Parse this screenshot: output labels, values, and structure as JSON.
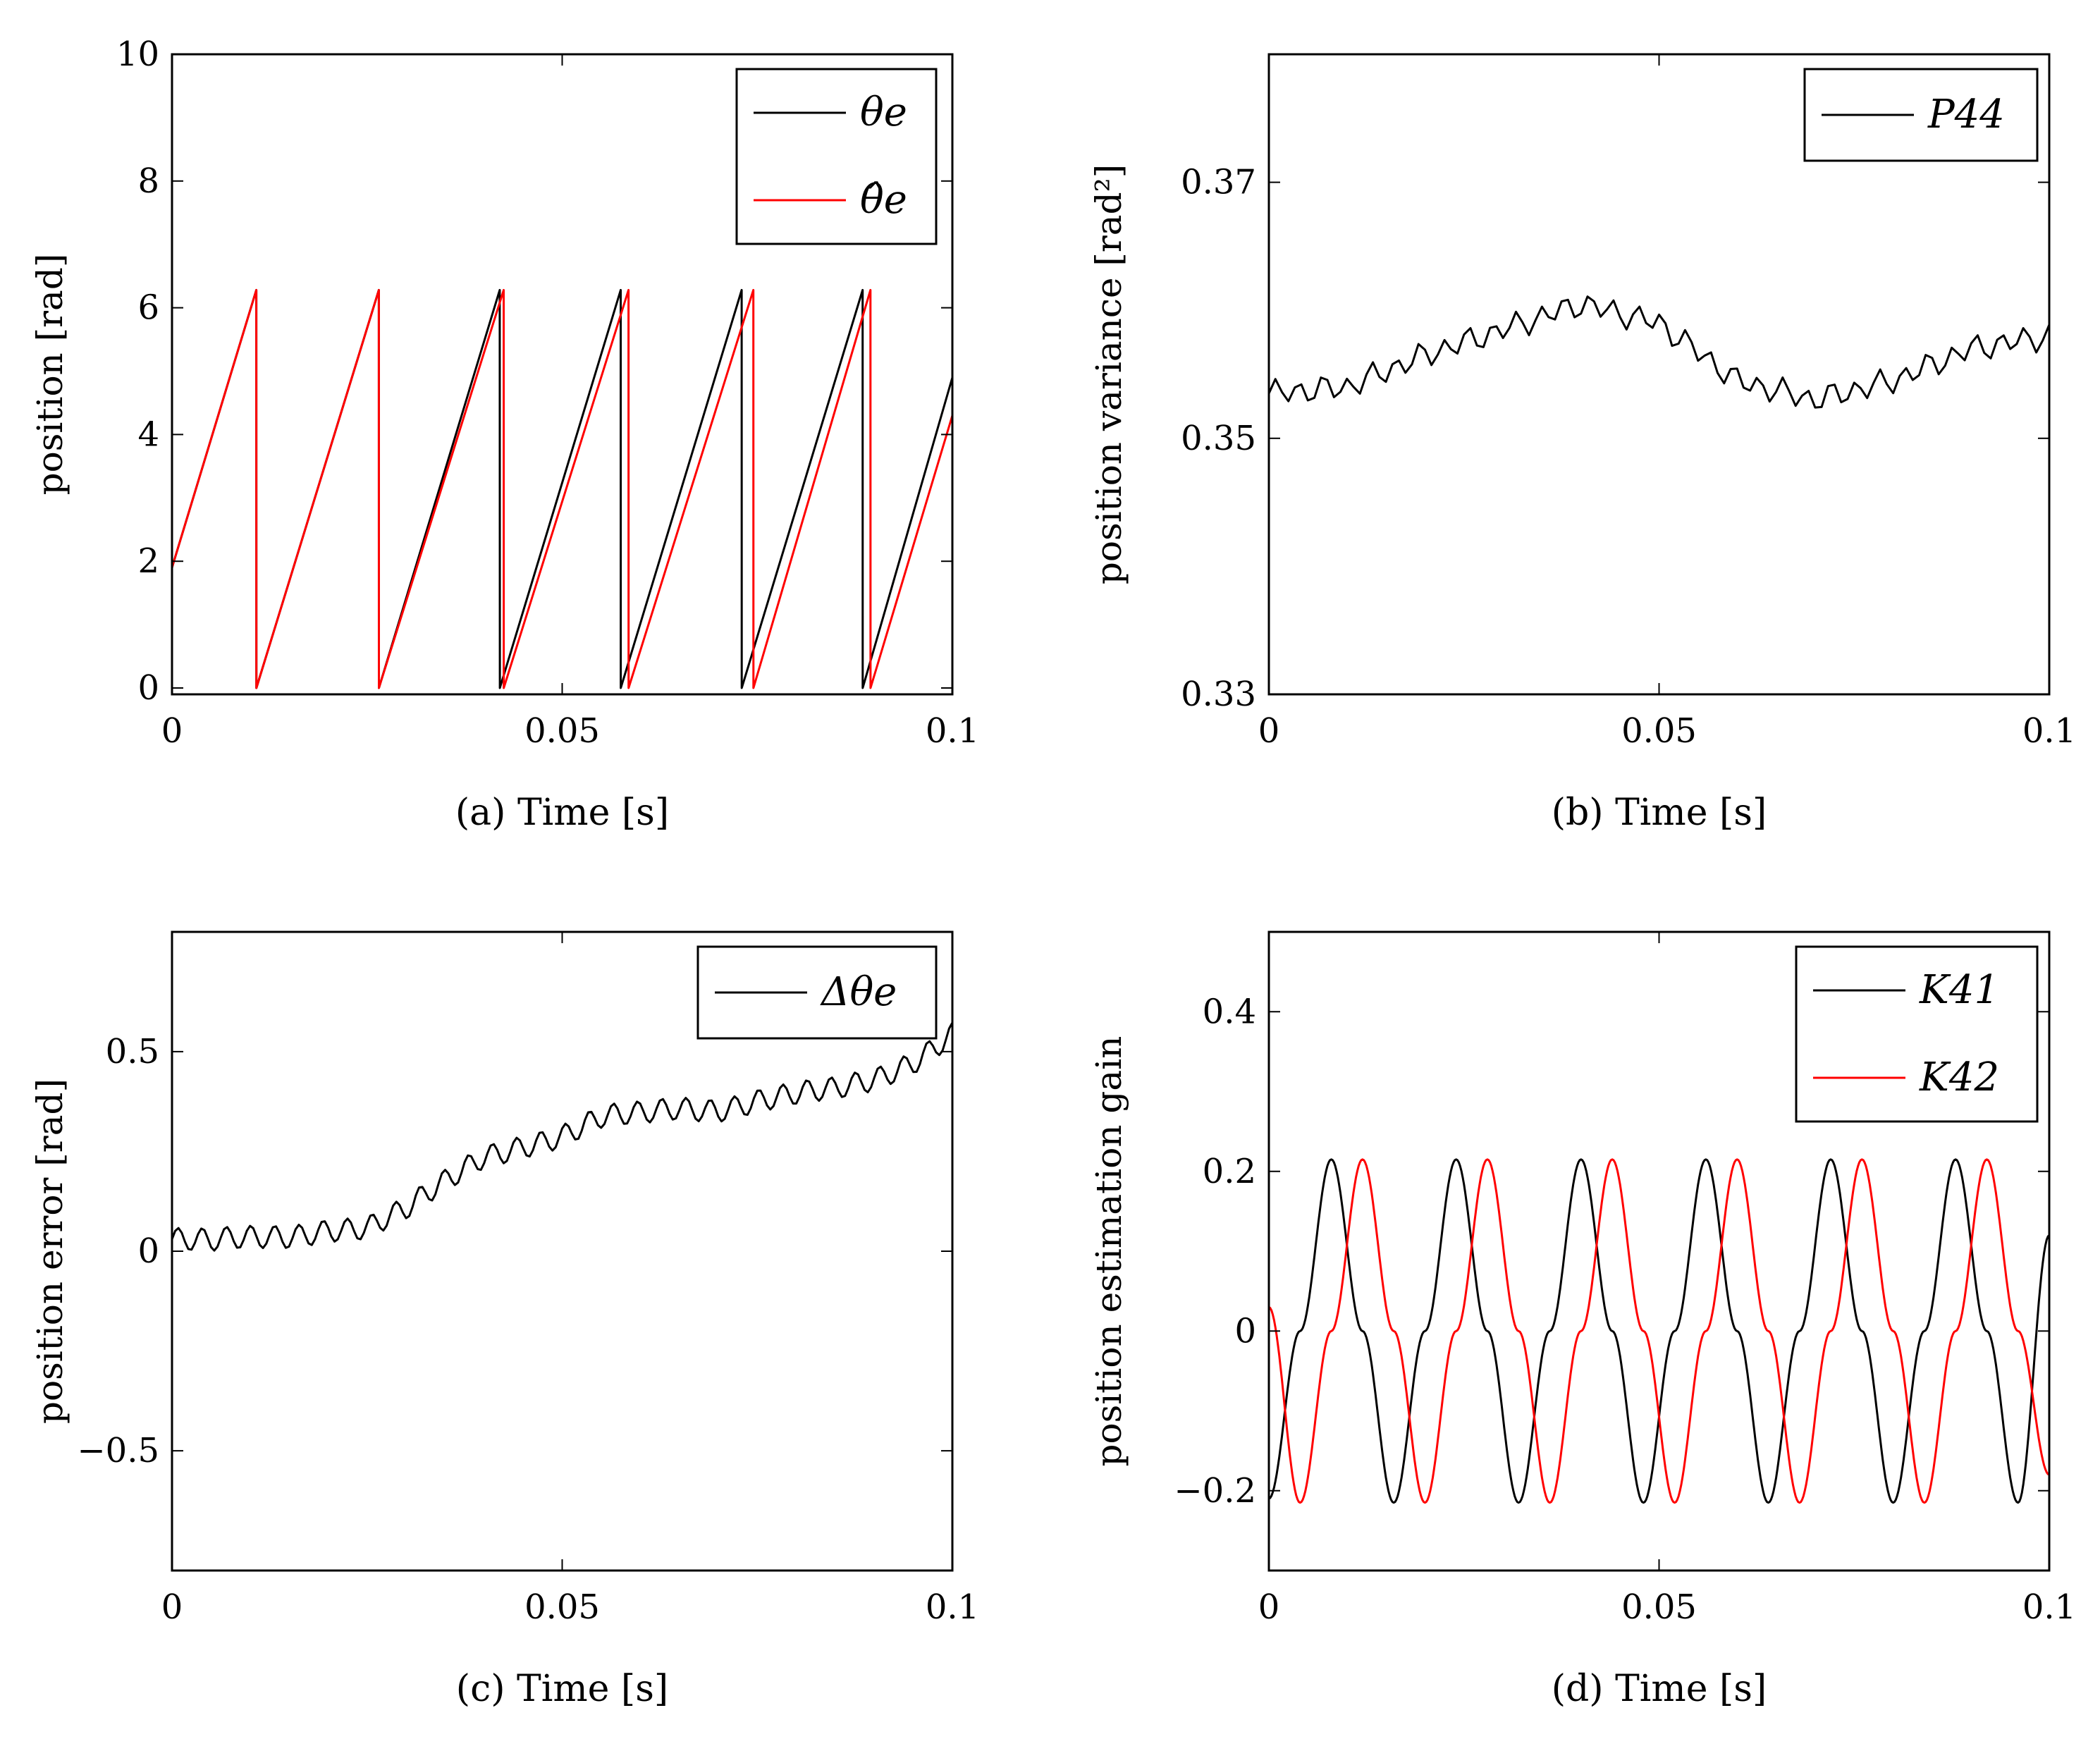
{
  "chart_data": [
    {
      "id": "a",
      "type": "line",
      "caption": "(a) Time [s]",
      "ylabel": "position [rad]",
      "xlim": [
        0,
        0.1
      ],
      "ylim": [
        -0.1,
        10
      ],
      "xticks": [
        0,
        0.05,
        0.1
      ],
      "xtick_labels": [
        "0",
        "0.05",
        "0.1"
      ],
      "yticks": [
        0,
        2,
        4,
        6,
        8,
        10
      ],
      "ytick_labels": [
        "0",
        "2",
        "4",
        "6",
        "8",
        "10"
      ],
      "legend_position": "top-right",
      "series": [
        {
          "name": "θe",
          "color": "#000000",
          "x": [
            0,
            0.0108,
            0.01081,
            0.0265,
            0.02651,
            0.042,
            0.04201,
            0.0575,
            0.05751,
            0.073,
            0.07301,
            0.0885,
            0.08851,
            0.1
          ],
          "values": [
            1.9,
            6.28,
            0,
            6.28,
            0,
            6.28,
            0,
            6.28,
            0,
            6.28,
            0,
            6.28,
            0,
            4.9
          ]
        },
        {
          "name": "θ̂e",
          "color": "#ff0000",
          "x": [
            0,
            0.0108,
            0.01081,
            0.0265,
            0.02651,
            0.0425,
            0.04251,
            0.0585,
            0.05851,
            0.0745,
            0.07451,
            0.0895,
            0.08951,
            0.1
          ],
          "values": [
            1.9,
            6.28,
            0,
            6.28,
            0,
            6.28,
            0,
            6.28,
            0,
            6.28,
            0,
            6.28,
            0,
            4.3
          ]
        }
      ]
    },
    {
      "id": "b",
      "type": "line",
      "caption": "(b) Time [s]",
      "ylabel": "position variance [rad²]",
      "xlim": [
        0,
        0.1
      ],
      "ylim": [
        0.33,
        0.38
      ],
      "xticks": [
        0,
        0.05,
        0.1
      ],
      "xtick_labels": [
        "0",
        "0.05",
        "0.1"
      ],
      "yticks": [
        0.33,
        0.35,
        0.37
      ],
      "ytick_labels": [
        "0.33",
        "0.35",
        "0.37"
      ],
      "legend_position": "top-right",
      "series": [
        {
          "name": "P44",
          "color": "#000000",
          "x": [
            0,
            0.01,
            0.02,
            0.03,
            0.04,
            0.05,
            0.06,
            0.07,
            0.08,
            0.09,
            0.1
          ],
          "values": [
            0.3535,
            0.354,
            0.3565,
            0.3585,
            0.3605,
            0.359,
            0.3545,
            0.353,
            0.3545,
            0.357,
            0.358
          ]
        }
      ]
    },
    {
      "id": "c",
      "type": "line",
      "caption": "(c) Time [s]",
      "ylabel": "position error [rad]",
      "xlim": [
        0,
        0.1
      ],
      "ylim": [
        -0.8,
        0.8
      ],
      "xticks": [
        0,
        0.05,
        0.1
      ],
      "xtick_labels": [
        "0",
        "0.05",
        "0.1"
      ],
      "yticks": [
        -0.5,
        0,
        0.5
      ],
      "ytick_labels": [
        "−0.5",
        "0",
        "0.5"
      ],
      "legend_position": "top-right",
      "series": [
        {
          "name": "Δθe",
          "color": "#000000",
          "x": [
            0,
            0.005,
            0.01,
            0.015,
            0.02,
            0.025,
            0.03,
            0.035,
            0.04,
            0.045,
            0.05,
            0.055,
            0.06,
            0.065,
            0.07,
            0.075,
            0.08,
            0.085,
            0.09,
            0.095,
            0.1
          ],
          "values": [
            0.03,
            0.02,
            0.03,
            0.04,
            0.06,
            0.06,
            0.1,
            0.17,
            0.24,
            0.27,
            0.29,
            0.33,
            0.34,
            0.36,
            0.36,
            0.38,
            0.39,
            0.4,
            0.43,
            0.48,
            0.55
          ]
        }
      ]
    },
    {
      "id": "d",
      "type": "line",
      "caption": "(d) Time [s]",
      "ylabel": "position estimation gain",
      "xlim": [
        0,
        0.1
      ],
      "ylim": [
        -0.3,
        0.5
      ],
      "xticks": [
        0,
        0.05,
        0.1
      ],
      "xtick_labels": [
        "0",
        "0.05",
        "0.1"
      ],
      "yticks": [
        -0.2,
        0,
        0.2,
        0.4
      ],
      "ytick_labels": [
        "−0.2",
        "0",
        "0.2",
        "0.4"
      ],
      "legend_position": "top-right",
      "series": [
        {
          "name": "K41",
          "color": "#000000",
          "x": [
            0,
            0.004,
            0.008,
            0.012,
            0.016,
            0.02,
            0.024,
            0.028,
            0.032,
            0.036,
            0.04,
            0.044,
            0.048,
            0.052,
            0.056,
            0.06,
            0.064,
            0.068,
            0.072,
            0.076,
            0.08,
            0.084,
            0.088,
            0.092,
            0.096,
            0.1
          ],
          "values": [
            -0.21,
            0.0,
            0.215,
            0.0,
            -0.215,
            0.0,
            0.215,
            0.0,
            -0.215,
            0.0,
            0.215,
            0.0,
            -0.215,
            0.0,
            0.215,
            0.0,
            -0.215,
            0.0,
            0.215,
            0.0,
            -0.215,
            0.0,
            0.215,
            0.0,
            -0.215,
            0.12
          ]
        },
        {
          "name": "K42",
          "color": "#ff0000",
          "x": [
            0,
            0.004,
            0.008,
            0.012,
            0.016,
            0.02,
            0.024,
            0.028,
            0.032,
            0.036,
            0.04,
            0.044,
            0.048,
            0.052,
            0.056,
            0.06,
            0.064,
            0.068,
            0.072,
            0.076,
            0.08,
            0.084,
            0.088,
            0.092,
            0.096,
            0.1
          ],
          "values": [
            0.03,
            -0.215,
            0.0,
            0.215,
            0.0,
            -0.215,
            0.0,
            0.215,
            0.0,
            -0.215,
            0.0,
            0.215,
            0.0,
            -0.215,
            0.0,
            0.215,
            0.0,
            -0.215,
            0.0,
            0.215,
            0.0,
            -0.215,
            0.0,
            0.215,
            0.0,
            -0.18
          ]
        }
      ]
    }
  ]
}
